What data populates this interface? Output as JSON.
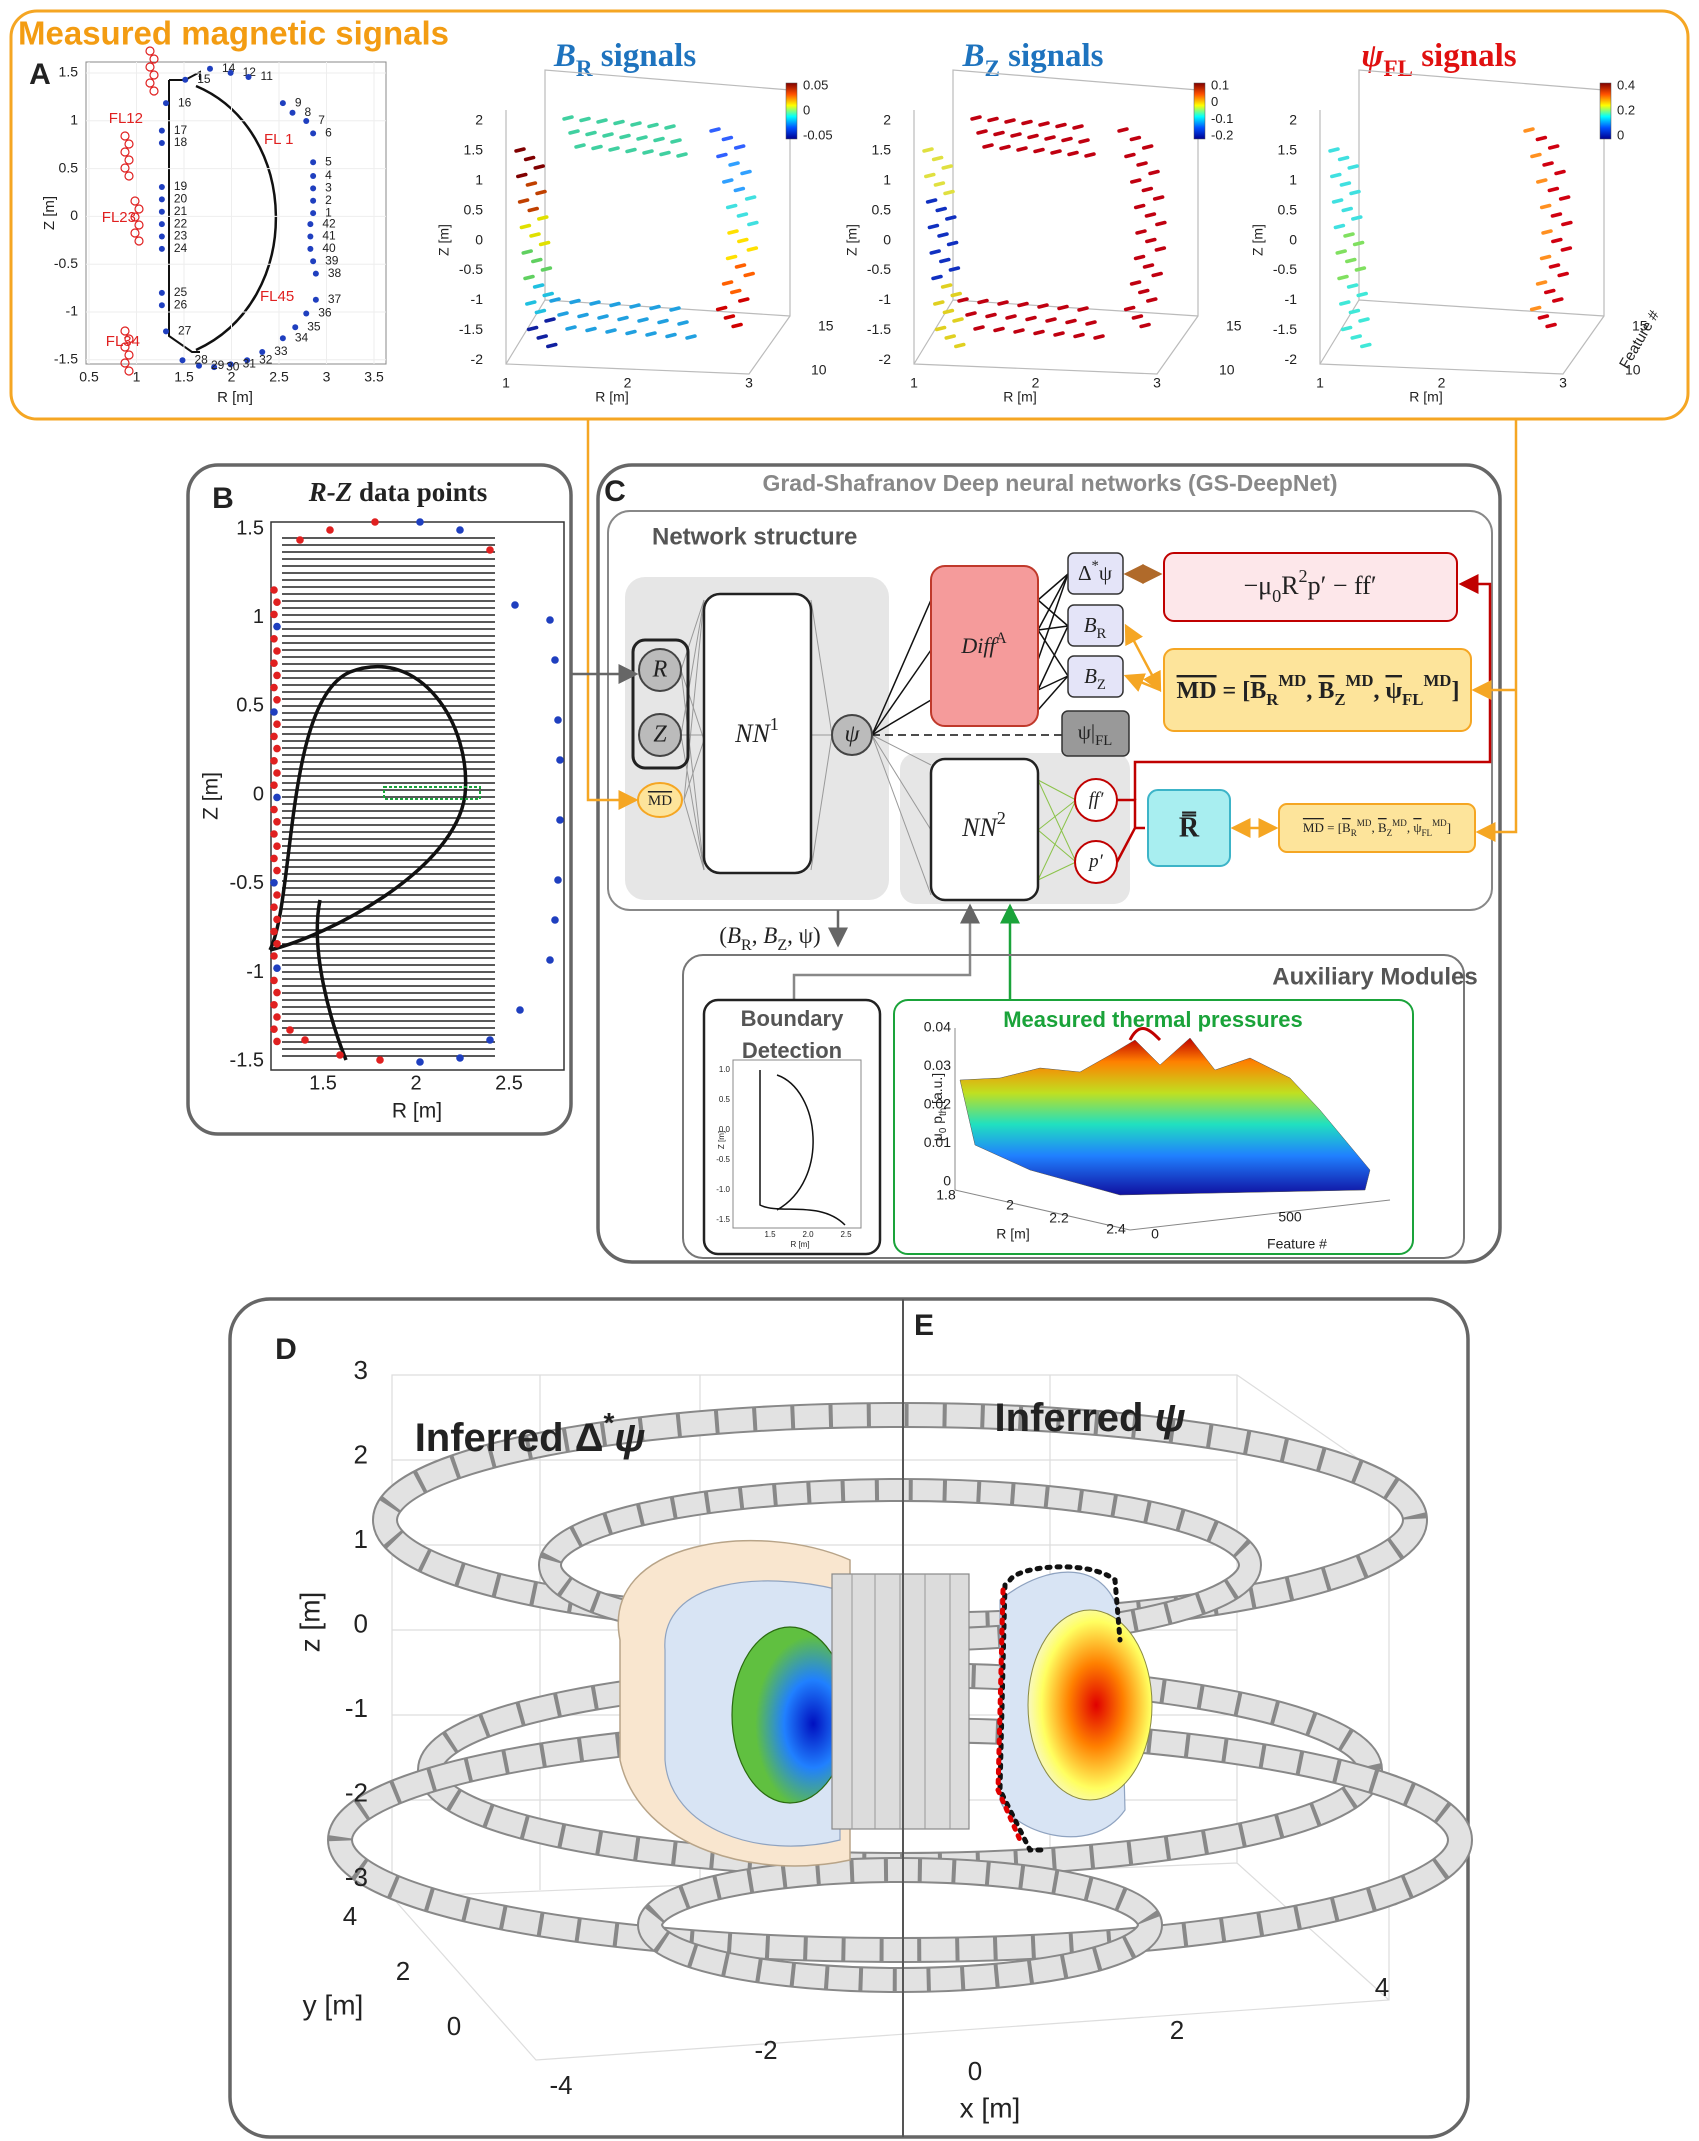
{
  "panel_a": {
    "label": "A",
    "title": "Measured magnetic signals",
    "geometry_plot": {
      "x_label": "R [m]",
      "y_label": "Z [m]",
      "x_ticks": [
        "0.5",
        "1",
        "1.5",
        "2",
        "2.5",
        "3",
        "3.5"
      ],
      "y_ticks": [
        "1.5",
        "1",
        "0.5",
        "0",
        "-0.5",
        "-1",
        "-1.5"
      ],
      "probes": [
        "15",
        "14",
        "12",
        "11",
        "9",
        "8",
        "7",
        "6",
        "5",
        "4",
        "3",
        "2",
        "1",
        "42",
        "41",
        "40",
        "39",
        "38",
        "37",
        "36",
        "35",
        "34",
        "33",
        "32",
        "31",
        "30",
        "29",
        "28",
        "27",
        "26",
        "25",
        "24",
        "23",
        "22",
        "21",
        "20",
        "19",
        "18",
        "17",
        "16"
      ],
      "flux_loops": [
        "FL12",
        "FL 1",
        "FL23",
        "FL45",
        "FL34"
      ]
    },
    "br_plot": {
      "title": [
        {
          "text": "B",
          "style": "italic"
        },
        {
          "text": "R",
          "style": "sub"
        },
        {
          "text": " signals"
        }
      ],
      "colorbar_ticks": [
        "0.05",
        "0",
        "-0.05"
      ]
    },
    "bz_plot": {
      "title": [
        {
          "text": "B",
          "style": "italic"
        },
        {
          "text": "Z",
          "style": "sub"
        },
        {
          "text": " signals"
        }
      ],
      "colorbar_ticks": [
        "0.1",
        "0",
        "-0.1",
        "-0.2"
      ]
    },
    "psi_plot": {
      "title": [
        {
          "text": "ψ",
          "style": "italic"
        },
        {
          "text": "FL",
          "style": "sub"
        },
        {
          "text": " signals"
        }
      ],
      "colorbar_ticks": [
        "0.4",
        "0.2",
        "0"
      ],
      "depth_label": "Feature #"
    },
    "axes_3d": {
      "x_label": "R [m]",
      "z_label": "Z [m]",
      "x_ticks": [
        "1",
        "2",
        "3"
      ],
      "z_ticks": [
        "2",
        "1.5",
        "1",
        "0.5",
        "0",
        "-0.5",
        "-1",
        "-1.5",
        "-2"
      ],
      "depth_ticks": [
        "15",
        "10"
      ]
    }
  },
  "panel_b": {
    "label": "B",
    "title": [
      {
        "text": "R-Z",
        "style": "italic"
      },
      {
        "text": " data points"
      }
    ],
    "x_label": "R [m]",
    "y_label": "Z [m]",
    "x_ticks": [
      "1.5",
      "2",
      "2.5"
    ],
    "y_ticks": [
      "1.5",
      "1",
      "0.5",
      "0",
      "-0.5",
      "-1",
      "-1.5"
    ]
  },
  "panel_c": {
    "label": "C",
    "title": "Grad-Shafranov Deep neural networks (GS-DeepNet)",
    "network_title": "Network structure",
    "nodes": {
      "input_r": "R",
      "input_z": "Z",
      "input_md": [
        {
          "text": "MD",
          "style": "over"
        }
      ],
      "nn1": [
        {
          "text": "NN",
          "style": "italic"
        },
        {
          "text": "1",
          "style": "sup"
        }
      ],
      "psi": "ψ",
      "diff": [
        {
          "text": "Diff",
          "style": "italic"
        },
        {
          "text": "A",
          "style": "sup"
        }
      ],
      "laplace": [
        {
          "text": "Δ"
        },
        {
          "text": "*",
          "style": "sup"
        },
        {
          "text": "ψ"
        }
      ],
      "br": [
        {
          "text": "B",
          "style": "italic"
        },
        {
          "text": "R",
          "style": "sub"
        }
      ],
      "bz": [
        {
          "text": "B",
          "style": "italic"
        },
        {
          "text": "Z",
          "style": "sub"
        }
      ],
      "psi_fl": [
        {
          "text": "ψ|"
        },
        {
          "text": "FL",
          "style": "sub"
        }
      ],
      "nn2": [
        {
          "text": "NN",
          "style": "italic"
        },
        {
          "text": "2",
          "style": "sup"
        }
      ],
      "ffprime": [
        {
          "text": "ff′",
          "style": "italic"
        }
      ],
      "pprime": [
        {
          "text": "p′",
          "style": "italic"
        }
      ],
      "residual": "R̿",
      "source": [
        {
          "text": "−μ"
        },
        {
          "text": "0",
          "style": "sub"
        },
        {
          "text": "R"
        },
        {
          "text": "2",
          "style": "sup"
        },
        {
          "text": "p′ − ff′"
        }
      ],
      "md_vector": [
        {
          "text": "MD",
          "style": "over"
        },
        {
          "text": " = ["
        },
        {
          "text": "B",
          "style": "over"
        },
        {
          "text": "R",
          "style": "sub"
        },
        {
          "text": "MD",
          "style": "sup"
        },
        {
          "text": ", "
        },
        {
          "text": "B",
          "style": "over"
        },
        {
          "text": "Z",
          "style": "sub"
        },
        {
          "text": "MD",
          "style": "sup"
        },
        {
          "text": ", "
        },
        {
          "text": "ψ",
          "style": "over"
        },
        {
          "text": "FL",
          "style": "sub"
        },
        {
          "text": "MD",
          "style": "sup"
        },
        {
          "text": "]"
        }
      ],
      "outputs": [
        {
          "text": "("
        },
        {
          "text": "B",
          "style": "italic"
        },
        {
          "text": "R",
          "style": "sub"
        },
        {
          "text": ", "
        },
        {
          "text": "B",
          "style": "italic"
        },
        {
          "text": "Z",
          "style": "sub"
        },
        {
          "text": ", ψ)"
        }
      ]
    },
    "auxiliary": {
      "title": "Auxiliary Modules",
      "boundary_title": [
        "Boundary",
        "Detection"
      ],
      "boundary_plot": {
        "y_ticks": [
          "1.0",
          "0.5",
          "0.0",
          "-0.5",
          "-1.0",
          "-1.5"
        ],
        "x_ticks": [
          "1.5",
          "2.0",
          "2.5"
        ],
        "x_label": "R [m]",
        "y_label": "Z [m]"
      },
      "pressure_title": "Measured thermal pressures",
      "pressure_plot": {
        "z_label": [
          {
            "text": "μ"
          },
          {
            "text": "0",
            "style": "sub"
          },
          {
            "text": " p"
          },
          {
            "text": "th",
            "style": "sub"
          },
          {
            "text": " [a.u.]"
          }
        ],
        "z_ticks": [
          "0.04",
          "0.03",
          "0.02",
          "0.01",
          "0"
        ],
        "r_ticks": [
          "1.8",
          "2",
          "2.2",
          "2.4"
        ],
        "r_label": "R [m]",
        "feature_ticks": [
          "0",
          "500"
        ],
        "feature_label": "Feature #"
      }
    }
  },
  "panel_de": {
    "label_d": "D",
    "label_e": "E",
    "title_d": [
      {
        "text": "Inferred Δ"
      },
      {
        "text": "*",
        "style": "sup"
      },
      {
        "text": "ψ",
        "style": "italic"
      }
    ],
    "title_e": [
      {
        "text": "Inferred "
      },
      {
        "text": "ψ",
        "style": "italic"
      }
    ],
    "z_label": "z [m]",
    "z_ticks": [
      "3",
      "2",
      "1",
      "0",
      "-1",
      "-2",
      "-3"
    ],
    "y_label": "y [m]",
    "y_ticks": [
      "4",
      "2",
      "0"
    ],
    "x_label": "x [m]",
    "x_ticks": [
      "-4",
      "-2",
      "0",
      "2",
      "4"
    ]
  }
}
